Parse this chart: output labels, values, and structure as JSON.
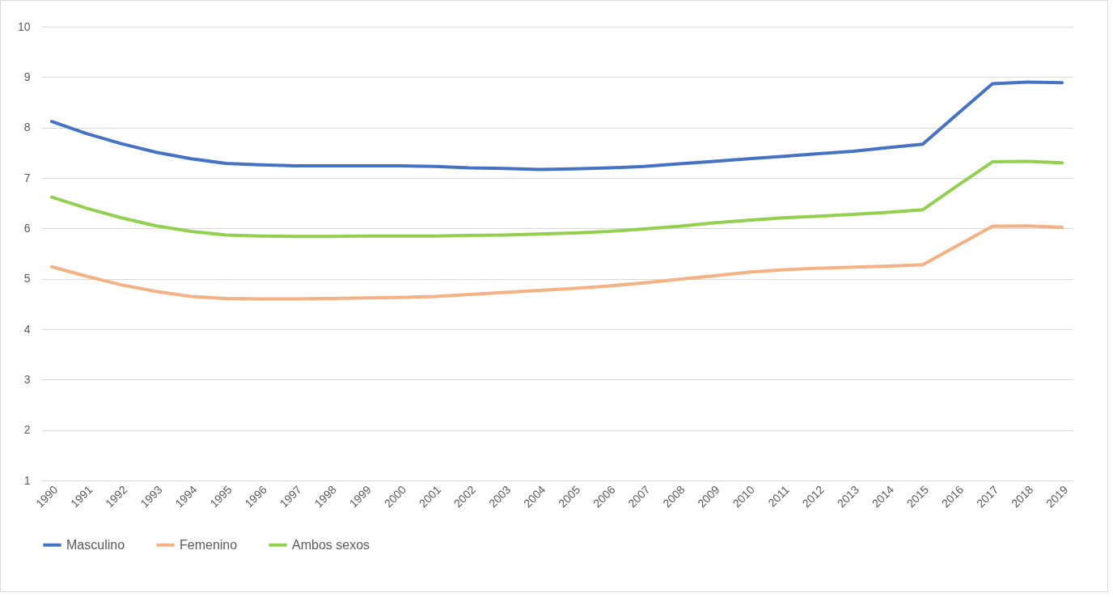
{
  "chart_data": {
    "type": "line",
    "categories": [
      "1990",
      "1991",
      "1992",
      "1993",
      "1994",
      "1995",
      "1996",
      "1997",
      "1998",
      "1999",
      "2000",
      "2001",
      "2002",
      "2003",
      "2004",
      "2005",
      "2006",
      "2007",
      "2008",
      "2009",
      "2010",
      "2011",
      "2012",
      "2013",
      "2014",
      "2015",
      "2016",
      "2017",
      "2018",
      "2019"
    ],
    "series": [
      {
        "name": "Masculino",
        "color": "#4472c4",
        "values": [
          8.12,
          7.88,
          7.68,
          7.51,
          7.38,
          7.29,
          7.26,
          7.24,
          7.24,
          7.24,
          7.24,
          7.23,
          7.2,
          7.19,
          7.17,
          7.18,
          7.2,
          7.23,
          7.28,
          7.33,
          7.38,
          7.43,
          7.48,
          7.53,
          7.6,
          7.67,
          8.27,
          8.87,
          8.9,
          8.89
        ]
      },
      {
        "name": "Femenino",
        "color": "#f4b183",
        "values": [
          5.24,
          5.05,
          4.88,
          4.75,
          4.65,
          4.61,
          4.6,
          4.6,
          4.61,
          4.62,
          4.63,
          4.65,
          4.69,
          4.73,
          4.77,
          4.81,
          4.86,
          4.92,
          4.99,
          5.06,
          5.13,
          5.18,
          5.21,
          5.23,
          5.25,
          5.28,
          5.66,
          6.04,
          6.05,
          6.02
        ]
      },
      {
        "name": "Ambos sexos",
        "color": "#92d050",
        "values": [
          6.62,
          6.4,
          6.21,
          6.05,
          5.94,
          5.87,
          5.85,
          5.84,
          5.84,
          5.85,
          5.85,
          5.85,
          5.86,
          5.87,
          5.89,
          5.91,
          5.94,
          5.99,
          6.04,
          6.11,
          6.16,
          6.21,
          6.24,
          6.28,
          6.32,
          6.37,
          6.85,
          7.32,
          7.33,
          7.3
        ]
      }
    ],
    "ylim": [
      1,
      10
    ],
    "yticks": [
      1,
      2,
      3,
      4,
      5,
      6,
      7,
      8,
      9,
      10
    ],
    "grid": "y",
    "legend": "bottom"
  }
}
